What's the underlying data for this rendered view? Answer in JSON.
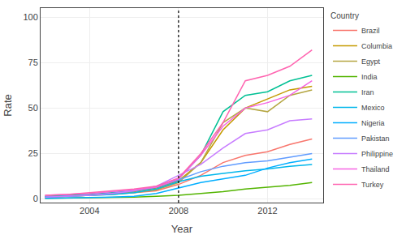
{
  "chart_data": {
    "type": "line",
    "xlabel": "Year",
    "ylabel": "Rate",
    "x": [
      2002,
      2003,
      2004,
      2005,
      2006,
      2007,
      2008,
      2009,
      2010,
      2011,
      2012,
      2013,
      2014
    ],
    "series": [
      {
        "name": "Brazil",
        "color": "#F8766D",
        "values": [
          1.5,
          2.0,
          2.5,
          3.0,
          3.5,
          4.5,
          8.0,
          13.0,
          20.0,
          24.0,
          26.0,
          30.0,
          33.0
        ]
      },
      {
        "name": "Columbia",
        "color": "#C49A00",
        "values": [
          1.0,
          1.5,
          2.0,
          3.0,
          4.0,
          6.0,
          10.0,
          20.0,
          38.0,
          50.0,
          55.0,
          60.0,
          62.0
        ]
      },
      {
        "name": "Egypt",
        "color": "#B5A642",
        "values": [
          1.0,
          1.5,
          2.0,
          2.5,
          3.5,
          5.0,
          9.0,
          20.0,
          42.0,
          50.0,
          48.0,
          57.0,
          60.0
        ]
      },
      {
        "name": "India",
        "color": "#53B400",
        "values": [
          0.3,
          0.4,
          0.5,
          0.8,
          1.0,
          1.5,
          2.0,
          3.0,
          4.0,
          5.5,
          6.5,
          7.5,
          9.0
        ]
      },
      {
        "name": "Iran",
        "color": "#00C094",
        "values": [
          1.5,
          2.0,
          2.5,
          3.5,
          4.5,
          6.5,
          11.0,
          24.0,
          48.0,
          57.0,
          59.0,
          65.0,
          68.0
        ]
      },
      {
        "name": "Mexico",
        "color": "#00B6EB",
        "values": [
          1.0,
          1.5,
          2.0,
          2.5,
          3.5,
          5.5,
          9.5,
          12.5,
          14.0,
          15.5,
          16.5,
          18.0,
          19.0
        ]
      },
      {
        "name": "Nigeria",
        "color": "#00AEFF",
        "values": [
          0.3,
          0.5,
          0.8,
          1.0,
          1.5,
          3.0,
          6.0,
          9.0,
          11.0,
          13.0,
          17.0,
          20.0,
          22.0
        ]
      },
      {
        "name": "Pakistan",
        "color": "#619CFF",
        "values": [
          1.0,
          1.5,
          2.0,
          3.0,
          4.5,
          6.5,
          10.5,
          15.0,
          18.0,
          20.0,
          21.0,
          23.0,
          25.0
        ]
      },
      {
        "name": "Philippine",
        "color": "#C77CFF",
        "values": [
          1.0,
          1.5,
          2.0,
          3.0,
          4.5,
          7.0,
          13.0,
          19.0,
          28.0,
          36.0,
          38.0,
          43.0,
          44.0
        ]
      },
      {
        "name": "Thailand",
        "color": "#F564E3",
        "values": [
          2.0,
          2.5,
          3.0,
          4.0,
          5.0,
          6.5,
          11.0,
          24.0,
          40.0,
          50.0,
          53.0,
          57.0,
          65.0
        ]
      },
      {
        "name": "Turkey",
        "color": "#FF64B0",
        "values": [
          2.0,
          2.5,
          3.5,
          4.5,
          5.5,
          7.0,
          11.5,
          25.0,
          42.0,
          65.0,
          68.0,
          73.0,
          82.0
        ]
      }
    ],
    "vline": 2008,
    "xlim": [
      2001.8,
      2014.5
    ],
    "ylim": [
      -2,
      105
    ],
    "xticks": [
      2004,
      2008,
      2012
    ],
    "yticks": [
      0,
      25,
      50,
      75,
      100
    ],
    "grid": true,
    "legend": "upper right",
    "legend_title": "Country"
  }
}
